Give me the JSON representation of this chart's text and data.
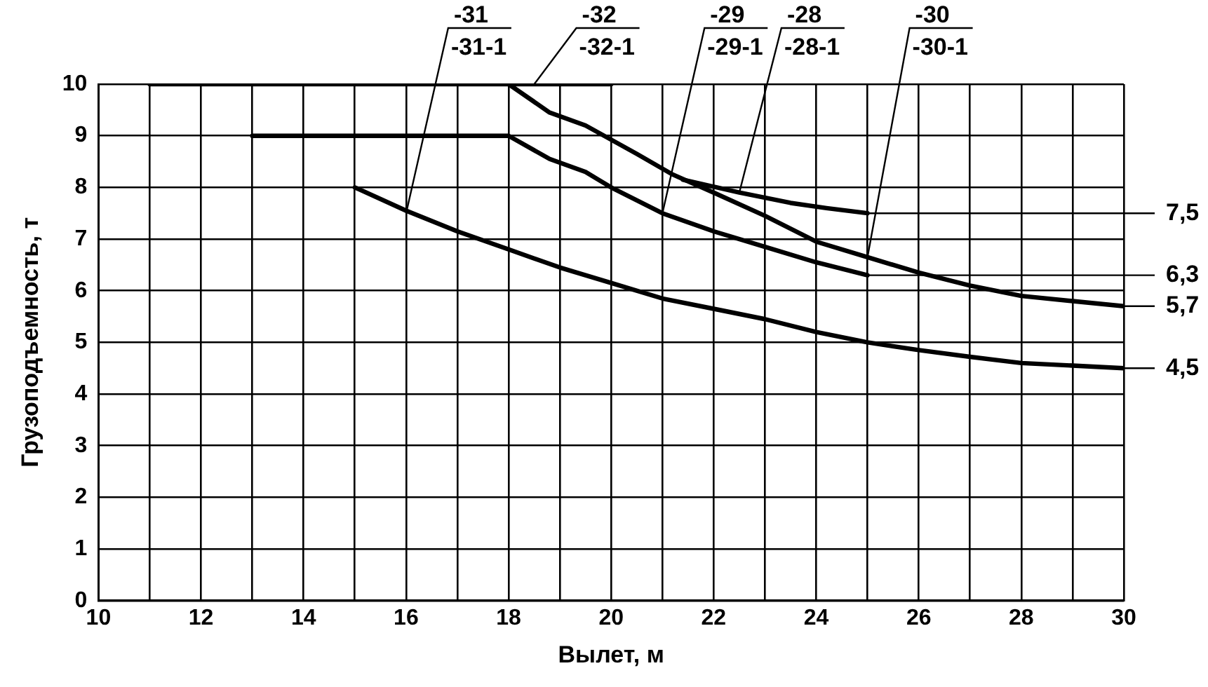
{
  "chart_data": {
    "type": "line",
    "xlabel": "Вылет, м",
    "ylabel": "Грузоподъемность, т",
    "xlim": [
      10,
      30
    ],
    "ylim": [
      0,
      10
    ],
    "xticks": [
      10,
      {
        "value": 11,
        "label": null
      },
      12,
      {
        "value": 13,
        "label": null
      },
      14,
      {
        "value": 15,
        "label": null
      },
      16,
      {
        "value": 17,
        "label": null
      },
      18,
      {
        "value": 19,
        "label": null
      },
      20,
      {
        "value": 21,
        "label": null
      },
      22,
      {
        "value": 23,
        "label": null
      },
      24,
      {
        "value": 25,
        "label": null
      },
      26,
      {
        "value": 27,
        "label": null
      },
      28,
      {
        "value": 29,
        "label": null
      },
      30
    ],
    "yticks": [
      0,
      1,
      2,
      3,
      4,
      5,
      6,
      7,
      8,
      9,
      10
    ],
    "grid": true,
    "legend": false,
    "marker": "none",
    "line_style": "solid",
    "series": [
      {
        "color": "#000000",
        "x": [
          11,
          20
        ],
        "values": [
          10,
          10
        ],
        "value_labels": [
          null,
          null
        ]
      },
      {
        "color": "#000000",
        "x": [
          13,
          18,
          18.8,
          19.5,
          20,
          21,
          22,
          23,
          24,
          25
        ],
        "values": [
          9,
          9,
          8.55,
          8.3,
          8,
          7.5,
          7.15,
          6.85,
          6.55,
          6.3
        ],
        "value_labels": [
          null,
          null,
          null,
          null,
          null,
          null,
          null,
          null,
          null,
          "6,3"
        ]
      },
      {
        "color": "#000000",
        "x": [
          18,
          18.8,
          19.5,
          20.5,
          21.2,
          22,
          23,
          24,
          25,
          26,
          27,
          28,
          29,
          30
        ],
        "values": [
          10,
          9.45,
          9.2,
          8.65,
          8.25,
          7.9,
          7.45,
          6.95,
          6.65,
          6.35,
          6.1,
          5.9,
          5.8,
          5.7
        ],
        "value_labels": [
          null,
          null,
          null,
          null,
          null,
          null,
          null,
          null,
          null,
          null,
          null,
          null,
          null,
          "5,7"
        ]
      },
      {
        "color": "#000000",
        "x": [
          21.4,
          22.5,
          23.5,
          24.2,
          25
        ],
        "values": [
          8.15,
          7.9,
          7.7,
          7.6,
          7.5
        ],
        "value_labels": [
          null,
          null,
          null,
          null,
          "7,5"
        ]
      },
      {
        "color": "#000000",
        "x": [
          15,
          16,
          17,
          18,
          19,
          20,
          21,
          22,
          23,
          24,
          25,
          26,
          27,
          28,
          29,
          30
        ],
        "values": [
          8,
          7.55,
          7.15,
          6.8,
          6.45,
          6.15,
          5.85,
          5.65,
          5.45,
          5.2,
          5,
          4.85,
          4.72,
          4.6,
          4.55,
          4.5
        ],
        "value_labels": [
          null,
          null,
          null,
          null,
          null,
          null,
          null,
          null,
          null,
          null,
          null,
          null,
          null,
          null,
          null,
          "4,5"
        ]
      }
    ],
    "annotations": [
      {
        "text": "-31",
        "x": 16,
        "y": 7.5
      },
      {
        "text": "-31-1",
        "x": 16,
        "y": 7.5
      },
      {
        "text": "-32",
        "x": 18.5,
        "y": 10
      },
      {
        "text": "-32-1",
        "x": 18.5,
        "y": 10
      },
      {
        "text": "-29",
        "x": 21,
        "y": 7.5
      },
      {
        "text": "-29-1",
        "x": 21,
        "y": 7.5
      },
      {
        "text": "-28",
        "x": 22.5,
        "y": 7.9
      },
      {
        "text": "-28-1",
        "x": 22.5,
        "y": 7.9
      },
      {
        "text": "-30",
        "x": 25,
        "y": 6.65
      },
      {
        "text": "-30-1",
        "x": 25,
        "y": 6.65
      }
    ]
  }
}
